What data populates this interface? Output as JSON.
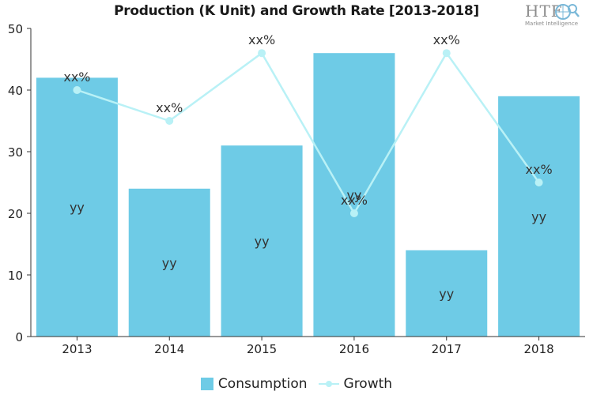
{
  "chart_data": {
    "type": "bar",
    "title": "Production (K Unit) and Growth Rate [2013-2018]",
    "categories": [
      "2013",
      "2014",
      "2015",
      "2016",
      "2017",
      "2018"
    ],
    "series": [
      {
        "name": "Consumption",
        "type": "bar",
        "values": [
          42,
          24,
          31,
          46,
          14,
          39
        ],
        "data_label": "yy",
        "color": "#6ecbe6"
      },
      {
        "name": "Growth",
        "type": "line",
        "values": [
          40,
          35,
          46,
          20,
          46,
          25
        ],
        "data_label": "xx%",
        "color": "#b9f1f6"
      }
    ],
    "ylim": [
      0,
      50
    ],
    "yticks": [
      "0",
      "10",
      "20",
      "30",
      "40",
      "50"
    ],
    "xlabel": "",
    "ylabel": "",
    "grid": false,
    "legend_position": "bottom"
  },
  "logo": {
    "text": "HTF",
    "subtext": "Market Intelligence"
  }
}
